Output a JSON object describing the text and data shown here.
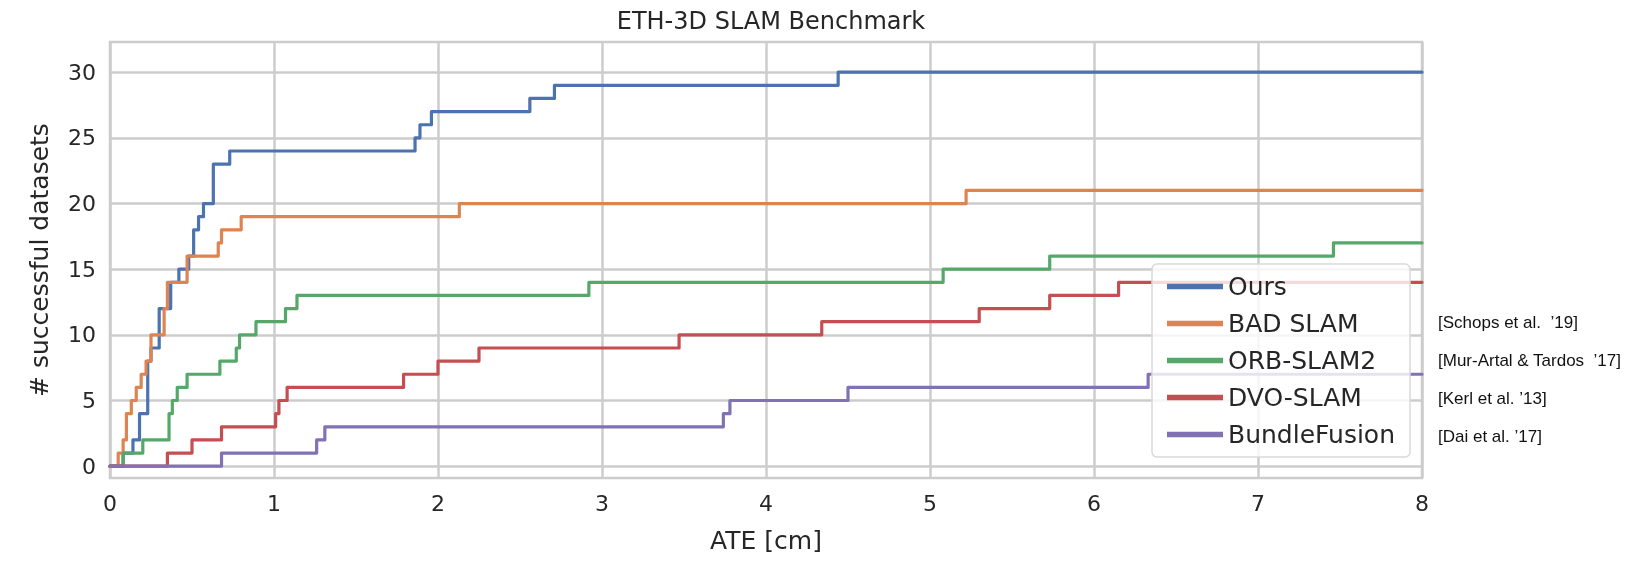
{
  "chart_data": {
    "type": "step",
    "title": "ETH-3D SLAM Benchmark",
    "xlabel": "ATE [cm]",
    "ylabel": "# successful datasets",
    "xlim": [
      0,
      8
    ],
    "xticks": [
      0,
      1,
      2,
      3,
      4,
      5,
      6,
      7,
      8
    ],
    "ylim": [
      -0.9,
      32.3
    ],
    "yticks": [
      0,
      5,
      10,
      15,
      20,
      25,
      30
    ],
    "grid": true,
    "legend": "bottom right",
    "marker": "none",
    "line_style": "solid",
    "annotations": [
      "[Schops et al.  ’19]",
      "[Mur-Artal & Tardos  ’17]",
      "[Kerl et al. ’13]",
      "[Dai et al. ’17]"
    ],
    "series": [
      {
        "name": "Ours",
        "color": "#4c72b0",
        "x": [
          0,
          0.08,
          0.14,
          0.18,
          0.23,
          0.25,
          0.3,
          0.37,
          0.42,
          0.48,
          0.51,
          0.54,
          0.57,
          0.63,
          0.73,
          1.86,
          1.89,
          1.96,
          2.56,
          2.71,
          4.44,
          8
        ],
        "values": [
          0,
          1,
          2,
          4,
          8,
          9,
          12,
          14,
          15,
          16,
          18,
          19,
          20,
          23,
          24,
          25,
          26,
          27,
          28,
          29,
          30,
          30
        ]
      },
      {
        "name": "BAD SLAM",
        "color": "#dd8452",
        "x": [
          0,
          0.05,
          0.08,
          0.1,
          0.13,
          0.16,
          0.19,
          0.22,
          0.25,
          0.33,
          0.35,
          0.47,
          0.66,
          0.68,
          0.8,
          2.13,
          5.22,
          8
        ],
        "values": [
          0,
          1,
          2,
          4,
          5,
          6,
          7,
          8,
          10,
          12,
          14,
          16,
          17,
          18,
          19,
          20,
          21,
          21
        ]
      },
      {
        "name": "ORB-SLAM2",
        "color": "#55a868",
        "x": [
          0,
          0.08,
          0.2,
          0.36,
          0.38,
          0.41,
          0.47,
          0.67,
          0.77,
          0.79,
          0.89,
          1.07,
          1.14,
          2.92,
          5.08,
          5.73,
          7.46,
          8
        ],
        "values": [
          0,
          1,
          2,
          4,
          5,
          6,
          7,
          8,
          9,
          10,
          11,
          12,
          13,
          14,
          15,
          16,
          17,
          17
        ]
      },
      {
        "name": "DVO-SLAM",
        "color": "#c44e52",
        "x": [
          0,
          0.35,
          0.5,
          0.68,
          1.01,
          1.03,
          1.08,
          1.79,
          2.0,
          2.25,
          3.47,
          4.34,
          5.3,
          5.73,
          6.15,
          8
        ],
        "values": [
          0,
          1,
          2,
          3,
          4,
          5,
          6,
          7,
          8,
          9,
          10,
          11,
          12,
          13,
          14,
          14
        ]
      },
      {
        "name": "BundleFusion",
        "color": "#8172b3",
        "x": [
          0,
          0.68,
          1.26,
          1.31,
          3.74,
          3.78,
          4.5,
          6.33,
          8
        ],
        "values": [
          0,
          1,
          2,
          3,
          4,
          5,
          6,
          7,
          7
        ]
      }
    ]
  }
}
